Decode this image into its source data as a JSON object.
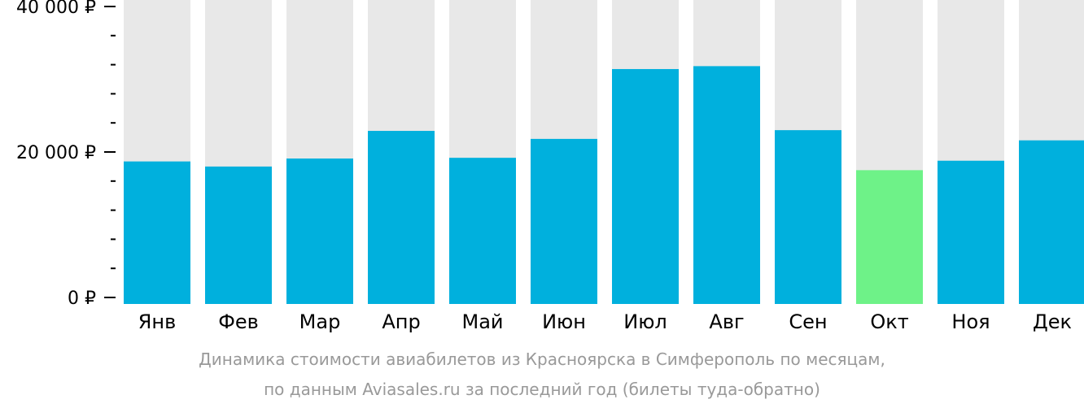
{
  "chart_data": {
    "type": "bar",
    "categories": [
      "Янв",
      "Фев",
      "Мар",
      "Апр",
      "Май",
      "Июн",
      "Июл",
      "Авг",
      "Сен",
      "Окт",
      "Ноя",
      "Дек"
    ],
    "values": [
      18700,
      18000,
      19100,
      22900,
      19200,
      21800,
      31400,
      31800,
      23000,
      17500,
      18800,
      21600
    ],
    "ylim": [
      0,
      40000
    ],
    "yticks": [
      {
        "value": 0,
        "label": "0 ₽"
      },
      {
        "value": 20000,
        "label": "20 000 ₽"
      },
      {
        "value": 40000,
        "label": "40 000 ₽"
      }
    ],
    "minor_tick_step": 4000,
    "highlight_index": 9,
    "colors": {
      "bar": "#00b0dd",
      "highlight": "#6ef288",
      "background_bar": "#e8e8e8",
      "axis": "#000000"
    },
    "grid": false,
    "legend": "none"
  },
  "caption": {
    "line1": "Динамика стоимости авиабилетов из Красноярска в Симферополь по месяцам,",
    "line2": "по данным Aviasales.ru за последний год (билеты туда-обратно)"
  }
}
